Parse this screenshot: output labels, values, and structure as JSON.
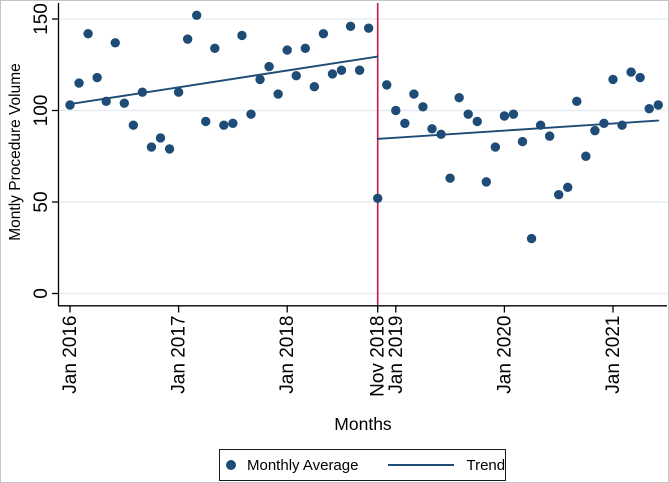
{
  "figure": {
    "description": "Interrupted time series scatter plot of monthly procedure volume with pre/post trend lines and an intervention line at Nov 2018",
    "x_axis_title": "Months",
    "y_axis_title": "Montly Procedure Volume",
    "legend": {
      "marker_label": "Monthly Average",
      "line_label": "Trend"
    }
  },
  "colors": {
    "marker": "#1e4c76",
    "trend": "#1e4c76",
    "intervention_line": "#c81940",
    "grid": "#e2ebf2",
    "axis": "#000000"
  },
  "chart_data": {
    "type": "scatter",
    "title": "",
    "xlabel": "Months",
    "ylabel": "Montly Procedure Volume",
    "ylim": [
      0,
      157
    ],
    "grid": "horizontal",
    "legend_position": "bottom",
    "y_ticks": [
      0,
      50,
      100,
      150
    ],
    "x_tick_labels": [
      "Jan 2016",
      "Jan 2017",
      "Jan 2018",
      "Nov 2018",
      "Jan 2019",
      "Jan 2020",
      "Jan 2021"
    ],
    "intervention": {
      "x": "Nov 2018"
    },
    "x": [
      "Jan 2016",
      "Feb 2016",
      "Mar 2016",
      "Apr 2016",
      "May 2016",
      "Jun 2016",
      "Jul 2016",
      "Aug 2016",
      "Sep 2016",
      "Oct 2016",
      "Nov 2016",
      "Dec 2016",
      "Jan 2017",
      "Feb 2017",
      "Mar 2017",
      "Apr 2017",
      "May 2017",
      "Jun 2017",
      "Jul 2017",
      "Aug 2017",
      "Sep 2017",
      "Oct 2017",
      "Nov 2017",
      "Dec 2017",
      "Jan 2018",
      "Feb 2018",
      "Mar 2018",
      "Apr 2018",
      "May 2018",
      "Jun 2018",
      "Jul 2018",
      "Aug 2018",
      "Sep 2018",
      "Oct 2018",
      "Nov 2018",
      "Dec 2018",
      "Jan 2019",
      "Feb 2019",
      "Mar 2019",
      "Apr 2019",
      "May 2019",
      "Jun 2019",
      "Jul 2019",
      "Aug 2019",
      "Sep 2019",
      "Oct 2019",
      "Nov 2019",
      "Dec 2019",
      "Jan 2020",
      "Feb 2020",
      "Mar 2020",
      "Apr 2020",
      "May 2020",
      "Jun 2020",
      "Jul 2020",
      "Aug 2020",
      "Sep 2020",
      "Oct 2020",
      "Nov 2020",
      "Dec 2020",
      "Jan 2021",
      "Feb 2021",
      "Mar 2021",
      "Apr 2021",
      "May 2021",
      "Jun 2021"
    ],
    "series": [
      {
        "name": "Monthly Average",
        "kind": "scatter",
        "values": [
          103,
          115,
          142,
          118,
          105,
          137,
          104,
          92,
          110,
          80,
          85,
          79,
          110,
          139,
          152,
          94,
          134,
          92,
          93,
          141,
          98,
          117,
          124,
          109,
          133,
          119,
          134,
          113,
          142,
          120,
          122,
          146,
          122,
          145,
          52,
          114,
          100,
          93,
          109,
          102,
          90,
          87,
          63,
          107,
          98,
          94,
          61,
          80,
          97,
          98,
          83,
          30,
          92,
          86,
          54,
          58,
          105,
          75,
          89,
          93,
          117,
          92,
          121,
          118,
          101,
          103
        ]
      },
      {
        "name": "Trend",
        "kind": "line",
        "segments": [
          {
            "x1": "Jan 2016",
            "y1": 103.5,
            "x2": "Nov 2018",
            "y2": 129.5
          },
          {
            "x1": "Nov 2018",
            "y1": 84.5,
            "x2": "Jun 2021",
            "y2": 94.5
          }
        ]
      }
    ]
  }
}
